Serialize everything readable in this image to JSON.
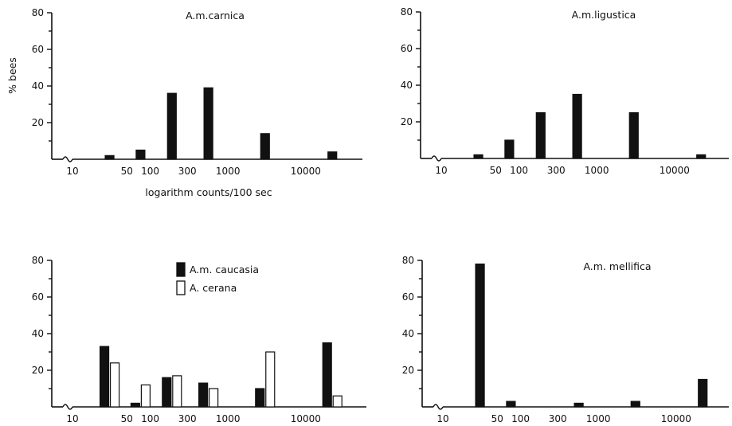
{
  "chart_data": [
    {
      "type": "bar",
      "title": "A.m.carnica",
      "xlabel": "logarithm counts/100 sec",
      "ylabel": "% bees",
      "ylim": [
        0,
        80
      ],
      "yticks": [
        "20",
        "40",
        "60",
        "80"
      ],
      "xticks": [
        "10",
        "50",
        "100",
        "300",
        "1000",
        "10000"
      ],
      "x_scale": "log",
      "legend": "none",
      "series": [
        {
          "color": "#111111",
          "x": [
            30,
            75,
            190,
            560,
            3000,
            22000
          ],
          "values": [
            2,
            5,
            36,
            39,
            14,
            4
          ]
        }
      ]
    },
    {
      "type": "bar",
      "title": "A.m.ligustica",
      "xlabel": "",
      "ylabel": "",
      "ylim": [
        0,
        80
      ],
      "yticks": [
        "20",
        "40",
        "60",
        "80"
      ],
      "xticks": [
        "10",
        "50",
        "100",
        "300",
        "1000",
        "10000"
      ],
      "x_scale": "log",
      "legend": "none",
      "series": [
        {
          "color": "#111111",
          "x": [
            30,
            75,
            190,
            560,
            3000,
            22000
          ],
          "values": [
            2,
            10,
            25,
            35,
            25,
            2
          ]
        }
      ]
    },
    {
      "type": "bar",
      "title": "",
      "xlabel": "",
      "ylabel": "",
      "ylim": [
        0,
        80
      ],
      "yticks": [
        "20",
        "40",
        "60",
        "80"
      ],
      "xticks": [
        "10",
        "50",
        "100",
        "300",
        "1000",
        "10000"
      ],
      "x_scale": "log",
      "legend": "top-center",
      "series": [
        {
          "name": "A.m. caucasia",
          "color": "#111111",
          "x": [
            30,
            75,
            190,
            560,
            3000,
            22000
          ],
          "values": [
            33,
            2,
            16,
            13,
            10,
            35
          ]
        },
        {
          "name": "A. cerana",
          "color": "#ffffff",
          "x": [
            30,
            75,
            190,
            560,
            3000,
            22000
          ],
          "values": [
            24,
            12,
            17,
            10,
            30,
            6
          ]
        }
      ]
    },
    {
      "type": "bar",
      "title": "A.m. mellifica",
      "xlabel": "",
      "ylabel": "",
      "ylim": [
        0,
        80
      ],
      "yticks": [
        "20",
        "40",
        "60",
        "80"
      ],
      "xticks": [
        "10",
        "50",
        "100",
        "300",
        "1000",
        "10000"
      ],
      "x_scale": "log",
      "legend": "none",
      "series": [
        {
          "color": "#111111",
          "x": [
            30,
            75,
            560,
            3000,
            22000
          ],
          "values": [
            78,
            3,
            2,
            3,
            15
          ]
        }
      ]
    }
  ]
}
